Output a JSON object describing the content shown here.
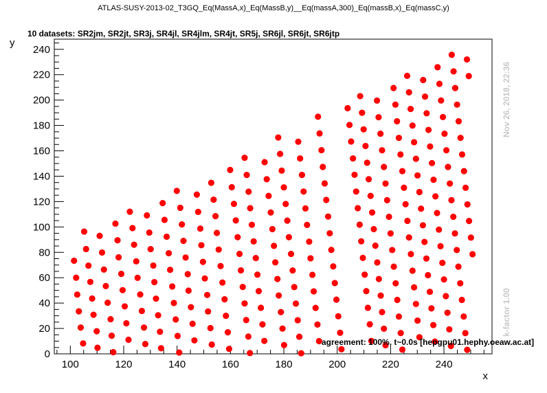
{
  "header": {
    "title": "ATLAS-SUSY-2013-02_T3GQ_Eq(MassA,x)_Eq(MassB,y)__Eq(massA,300)_Eq(massB,x)_Eq(massC,y)",
    "subtitle": "10 datasets: SR2jm, SR2jt, SR3j, SR4jl, SR4jlm, SR4jt, SR5j, SR6jl, SR6jt, SR6jtp"
  },
  "annotations": {
    "timestamp": "Nov 26, 2018, 22:36",
    "kfactor": "k-factor 1.00",
    "agreement": "agreement: 100%, t~0.0s [hepgpu01.hephy.oeaw.ac.at]"
  },
  "chart_data": {
    "type": "scatter",
    "xlabel": "x",
    "ylabel": "y",
    "xlim": [
      94,
      258
    ],
    "ylim": [
      0,
      248
    ],
    "xticks": [
      100,
      120,
      140,
      160,
      180,
      200,
      220,
      240
    ],
    "yticks": [
      0,
      20,
      40,
      60,
      80,
      100,
      120,
      140,
      160,
      180,
      200,
      220,
      240
    ],
    "marker_color": "#ff0000",
    "grid": false,
    "series": [
      {
        "points": [
          [
            101.4,
            73.4
          ],
          [
            102.2,
            60.0
          ],
          [
            102.6,
            46.7
          ],
          [
            103.2,
            33.5
          ],
          [
            103.9,
            20.7
          ],
          [
            104.8,
            8.2
          ],
          [
            105.2,
            96.3
          ],
          [
            105.9,
            82.6
          ],
          [
            106.8,
            69.5
          ],
          [
            107.5,
            56.7
          ],
          [
            108.2,
            43.6
          ],
          [
            108.7,
            30.8
          ],
          [
            109.9,
            17.8
          ],
          [
            110.2,
            4.8
          ],
          [
            111.0,
            93.0
          ],
          [
            111.9,
            79.9
          ],
          [
            112.6,
            66.4
          ],
          [
            113.3,
            53.4
          ],
          [
            114.0,
            40.3
          ],
          [
            115.1,
            27.3
          ],
          [
            115.5,
            14.3
          ],
          [
            116.1,
            1.3
          ],
          [
            116.9,
            102.6
          ],
          [
            117.7,
            89.5
          ],
          [
            118.1,
            76.1
          ],
          [
            119.1,
            63.0
          ],
          [
            119.6,
            50.2
          ],
          [
            120.4,
            37.4
          ],
          [
            121.0,
            24.1
          ],
          [
            121.8,
            11.1
          ],
          [
            122.3,
            112.0
          ],
          [
            123.3,
            99.1
          ],
          [
            123.9,
            86.0
          ],
          [
            124.7,
            72.9
          ],
          [
            125.2,
            59.9
          ],
          [
            126.2,
            46.8
          ],
          [
            126.8,
            33.8
          ],
          [
            127.6,
            20.7
          ],
          [
            128.1,
            7.7
          ],
          [
            128.7,
            109.1
          ],
          [
            129.6,
            95.6
          ],
          [
            130.1,
            82.5
          ],
          [
            131.1,
            69.6
          ],
          [
            131.5,
            56.5
          ],
          [
            132.1,
            43.5
          ],
          [
            132.9,
            30.4
          ],
          [
            133.6,
            17.4
          ],
          [
            134.0,
            4.4
          ],
          [
            134.6,
            118.8
          ],
          [
            135.3,
            105.6
          ],
          [
            136.1,
            92.3
          ],
          [
            136.9,
            79.3
          ],
          [
            137.4,
            66.2
          ],
          [
            138.2,
            53.1
          ],
          [
            138.8,
            40.1
          ],
          [
            139.5,
            27.1
          ],
          [
            140.2,
            14.1
          ],
          [
            140.8,
            1.0
          ],
          [
            139.9,
            128.4
          ],
          [
            141.2,
            115.1
          ],
          [
            141.8,
            102.0
          ],
          [
            142.4,
            89.0
          ],
          [
            143.2,
            75.9
          ],
          [
            144.0,
            62.8
          ],
          [
            144.3,
            49.8
          ],
          [
            145.2,
            36.8
          ],
          [
            145.8,
            23.7
          ],
          [
            146.5,
            10.6
          ],
          [
            147.4,
            125.5
          ],
          [
            147.9,
            111.9
          ],
          [
            148.7,
            98.7
          ],
          [
            149.1,
            85.6
          ],
          [
            149.7,
            72.5
          ],
          [
            150.4,
            59.4
          ],
          [
            151.3,
            46.4
          ],
          [
            151.6,
            33.4
          ],
          [
            152.5,
            20.3
          ],
          [
            153.0,
            7.3
          ],
          [
            152.8,
            134.8
          ],
          [
            153.7,
            121.5
          ],
          [
            154.4,
            108.5
          ],
          [
            154.9,
            95.3
          ],
          [
            155.6,
            82.2
          ],
          [
            156.3,
            69.2
          ],
          [
            157.0,
            56.2
          ],
          [
            157.8,
            43.0
          ],
          [
            158.3,
            30.0
          ],
          [
            159.0,
            17.0
          ],
          [
            159.5,
            3.9
          ],
          [
            159.9,
            144.9
          ],
          [
            160.5,
            131.3
          ],
          [
            161.3,
            118.2
          ],
          [
            162.0,
            105.1
          ],
          [
            162.7,
            91.9
          ],
          [
            163.4,
            78.8
          ],
          [
            163.9,
            65.8
          ],
          [
            164.6,
            52.7
          ],
          [
            165.3,
            39.7
          ],
          [
            165.9,
            26.6
          ],
          [
            166.7,
            13.6
          ],
          [
            167.3,
            0.6
          ],
          [
            165.3,
            154.5
          ],
          [
            166.1,
            141.0
          ],
          [
            166.8,
            127.8
          ],
          [
            167.4,
            114.8
          ],
          [
            168.0,
            101.7
          ],
          [
            168.7,
            88.6
          ],
          [
            169.5,
            75.5
          ],
          [
            170.1,
            62.4
          ],
          [
            170.6,
            49.4
          ],
          [
            171.4,
            36.3
          ],
          [
            172.0,
            23.2
          ],
          [
            172.7,
            10.2
          ],
          [
            172.8,
            151.1
          ],
          [
            173.6,
            137.6
          ],
          [
            174.3,
            124.5
          ],
          [
            175.1,
            111.4
          ],
          [
            175.7,
            98.3
          ],
          [
            176.3,
            85.1
          ],
          [
            176.8,
            72.1
          ],
          [
            177.6,
            59.0
          ],
          [
            178.1,
            46.0
          ],
          [
            178.9,
            32.9
          ],
          [
            179.5,
            19.9
          ],
          [
            180.1,
            6.9
          ],
          [
            177.9,
            170.5
          ],
          [
            178.6,
            157.6
          ],
          [
            179.2,
            144.4
          ],
          [
            180.0,
            131.2
          ],
          [
            180.7,
            118.1
          ],
          [
            181.3,
            105.0
          ],
          [
            181.9,
            91.9
          ],
          [
            182.7,
            78.7
          ],
          [
            183.3,
            65.7
          ],
          [
            183.9,
            52.6
          ],
          [
            184.5,
            39.6
          ],
          [
            185.2,
            26.5
          ],
          [
            185.8,
            13.5
          ],
          [
            186.5,
            0.5
          ],
          [
            185.4,
            167.2
          ],
          [
            186.1,
            154.0
          ],
          [
            186.8,
            141.0
          ],
          [
            187.4,
            127.9
          ],
          [
            188.1,
            114.6
          ],
          [
            188.7,
            101.6
          ],
          [
            189.5,
            88.4
          ],
          [
            190.0,
            75.3
          ],
          [
            190.7,
            62.3
          ],
          [
            191.2,
            49.2
          ],
          [
            191.9,
            36.2
          ],
          [
            192.6,
            23.1
          ],
          [
            193.2,
            10.0
          ],
          [
            192.8,
            186.9
          ],
          [
            193.4,
            173.7
          ],
          [
            194.1,
            160.5
          ],
          [
            194.6,
            147.3
          ],
          [
            195.3,
            134.3
          ],
          [
            195.9,
            121.3
          ],
          [
            196.6,
            108.2
          ],
          [
            197.2,
            95.0
          ],
          [
            197.8,
            81.9
          ],
          [
            198.5,
            68.9
          ],
          [
            199.1,
            55.8
          ],
          [
            199.7,
            42.7
          ],
          [
            200.4,
            29.6
          ],
          [
            201.1,
            16.6
          ],
          [
            201.6,
            3.6
          ],
          [
            203.9,
            193.6
          ],
          [
            204.6,
            180.4
          ],
          [
            205.2,
            167.3
          ],
          [
            205.9,
            154.0
          ],
          [
            206.5,
            141.1
          ],
          [
            207.1,
            127.9
          ],
          [
            207.7,
            114.8
          ],
          [
            208.4,
            101.8
          ],
          [
            209.0,
            88.7
          ],
          [
            209.6,
            75.6
          ],
          [
            210.3,
            62.4
          ],
          [
            210.9,
            49.4
          ],
          [
            211.5,
            36.3
          ],
          [
            212.2,
            23.3
          ],
          [
            212.8,
            10.2
          ],
          [
            208.6,
            203.1
          ],
          [
            209.3,
            190.0
          ],
          [
            209.9,
            176.9
          ],
          [
            210.6,
            163.8
          ],
          [
            211.2,
            150.6
          ],
          [
            211.8,
            137.6
          ],
          [
            212.5,
            124.5
          ],
          [
            213.1,
            111.4
          ],
          [
            213.7,
            98.3
          ],
          [
            214.3,
            85.2
          ],
          [
            215.0,
            72.0
          ],
          [
            215.6,
            59.0
          ],
          [
            216.3,
            45.9
          ],
          [
            216.8,
            32.9
          ],
          [
            217.5,
            19.8
          ],
          [
            218.1,
            6.8
          ],
          [
            214.9,
            199.6
          ],
          [
            215.5,
            186.5
          ],
          [
            216.2,
            173.5
          ],
          [
            216.8,
            160.4
          ],
          [
            217.5,
            147.3
          ],
          [
            218.1,
            134.2
          ],
          [
            218.7,
            121.1
          ],
          [
            219.4,
            108.0
          ],
          [
            220.0,
            94.9
          ],
          [
            220.6,
            81.8
          ],
          [
            221.2,
            68.7
          ],
          [
            221.9,
            55.6
          ],
          [
            222.5,
            42.5
          ],
          [
            223.1,
            29.4
          ],
          [
            223.8,
            16.4
          ],
          [
            224.4,
            3.3
          ],
          [
            221.1,
            209.5
          ],
          [
            221.8,
            196.4
          ],
          [
            222.4,
            183.3
          ],
          [
            223.1,
            170.2
          ],
          [
            223.7,
            157.1
          ],
          [
            224.4,
            144.0
          ],
          [
            225.0,
            130.9
          ],
          [
            225.6,
            117.9
          ],
          [
            226.3,
            104.8
          ],
          [
            226.9,
            91.7
          ],
          [
            227.6,
            78.6
          ],
          [
            228.2,
            65.5
          ],
          [
            228.8,
            52.4
          ],
          [
            229.5,
            39.3
          ],
          [
            230.1,
            26.2
          ],
          [
            230.8,
            13.1
          ],
          [
            226.2,
            219.1
          ],
          [
            226.9,
            206.1
          ],
          [
            227.5,
            193.0
          ],
          [
            228.2,
            179.9
          ],
          [
            228.8,
            166.8
          ],
          [
            229.5,
            153.7
          ],
          [
            230.1,
            140.6
          ],
          [
            230.8,
            127.5
          ],
          [
            231.4,
            114.4
          ],
          [
            232.1,
            101.3
          ],
          [
            232.7,
            88.2
          ],
          [
            233.4,
            75.1
          ],
          [
            234.0,
            62.0
          ],
          [
            234.7,
            48.9
          ],
          [
            235.3,
            35.8
          ],
          [
            236.0,
            22.7
          ],
          [
            236.6,
            9.6
          ],
          [
            232.2,
            215.8
          ],
          [
            232.9,
            202.7
          ],
          [
            233.5,
            189.6
          ],
          [
            234.2,
            176.5
          ],
          [
            234.8,
            163.4
          ],
          [
            235.5,
            150.3
          ],
          [
            236.1,
            137.2
          ],
          [
            236.8,
            124.1
          ],
          [
            237.4,
            111.0
          ],
          [
            238.1,
            97.9
          ],
          [
            238.7,
            84.8
          ],
          [
            239.4,
            71.7
          ],
          [
            240.0,
            58.6
          ],
          [
            240.7,
            45.5
          ],
          [
            241.3,
            32.4
          ],
          [
            242.0,
            19.3
          ],
          [
            242.6,
            6.2
          ],
          [
            237.6,
            225.9
          ],
          [
            238.3,
            212.8
          ],
          [
            238.9,
            199.7
          ],
          [
            239.6,
            186.6
          ],
          [
            240.2,
            173.5
          ],
          [
            240.9,
            160.4
          ],
          [
            241.5,
            147.3
          ],
          [
            242.2,
            134.2
          ],
          [
            242.8,
            121.1
          ],
          [
            243.5,
            108.0
          ],
          [
            244.1,
            94.9
          ],
          [
            244.8,
            81.8
          ],
          [
            245.4,
            68.7
          ],
          [
            246.1,
            55.6
          ],
          [
            246.7,
            42.5
          ],
          [
            247.4,
            29.4
          ],
          [
            248.0,
            16.3
          ],
          [
            248.7,
            3.2
          ],
          [
            242.9,
            235.7
          ],
          [
            243.6,
            222.6
          ],
          [
            244.2,
            209.5
          ],
          [
            244.9,
            196.4
          ],
          [
            245.5,
            183.3
          ],
          [
            246.2,
            170.2
          ],
          [
            246.8,
            157.1
          ],
          [
            247.5,
            144.0
          ],
          [
            248.1,
            130.9
          ],
          [
            248.8,
            117.8
          ],
          [
            249.4,
            104.7
          ],
          [
            250.1,
            91.6
          ],
          [
            250.7,
            78.5
          ],
          [
            248.6,
            232.0
          ],
          [
            249.3,
            218.9
          ]
        ]
      }
    ]
  }
}
